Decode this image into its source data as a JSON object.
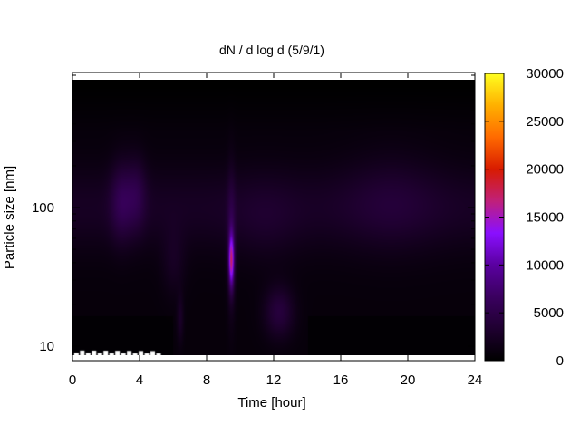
{
  "chart_data": {
    "type": "heatmap",
    "title": "dN / d log d (5/9/1)",
    "xlabel": "Time [hour]",
    "ylabel": "Particle size [nm]",
    "xlim": [
      0,
      24
    ],
    "xticks": [
      "0",
      "4",
      "8",
      "12",
      "16",
      "20",
      "24"
    ],
    "ylim": [
      8,
      900
    ],
    "yscale": "log",
    "yticks": [
      "10",
      "100"
    ],
    "colorbar": {
      "range": [
        0,
        30000
      ],
      "ticks": [
        "0",
        "5000",
        "10000",
        "15000",
        "20000",
        "25000",
        "30000"
      ],
      "palette": [
        "#000000",
        "#1f0030",
        "#3a005f",
        "#5a00a0",
        "#8a0fff",
        "#c0207a",
        "#d81b00",
        "#ff6a00",
        "#ffb000",
        "#ffff20"
      ]
    },
    "features": [
      {
        "time_h": 3.0,
        "size_nm": 120,
        "value": 5000
      },
      {
        "time_h": 6.4,
        "size_nm": 16,
        "value": 5000
      },
      {
        "time_h": 9.4,
        "size_nm": 45,
        "value": 15000
      },
      {
        "time_h": 12.3,
        "size_nm": 18,
        "value": 5000
      },
      {
        "time_h": 19.0,
        "size_nm": 140,
        "value": 2500
      }
    ]
  }
}
